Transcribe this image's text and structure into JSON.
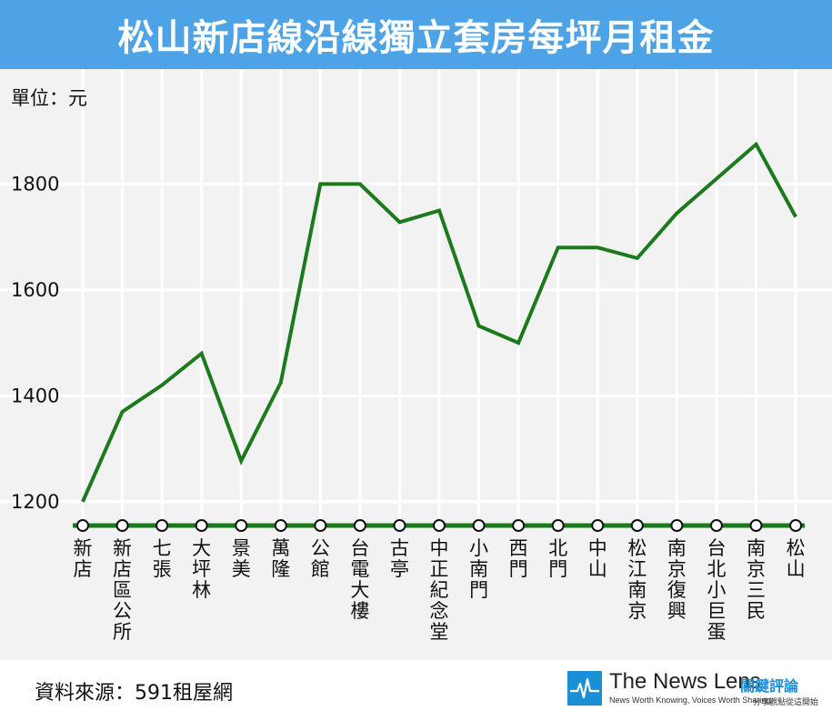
{
  "title": "松山新店線沿線獨立套房每坪月租金",
  "unit_label": "單位：元",
  "source": "資料來源：591租屋網",
  "brand": {
    "name": "The News Lens",
    "name_zh": "關鍵評論",
    "slogan": "News Worth Knowing, Voices Worth Sharing",
    "slogan_zh": "分享觀點從這開始",
    "logo_icon": "heartbeat-icon"
  },
  "colors": {
    "title_bg": "#4ea3e6",
    "line": "#1c7a1c",
    "plot_bg": "#f2f2f2",
    "grid": "#ffffff",
    "marker_fill": "#ffffff",
    "marker_stroke": "#111111"
  },
  "chart_data": {
    "type": "line",
    "title": "松山新店線沿線獨立套房每坪月租金",
    "ylabel": "單位：元",
    "xlabel": "",
    "ylim": [
      1155,
      1890
    ],
    "yticks": [
      1200,
      1400,
      1600,
      1800
    ],
    "grid": true,
    "categories": [
      "新店",
      "新店區公所",
      "七張",
      "大坪林",
      "景美",
      "萬隆",
      "公館",
      "台電大樓",
      "古亭",
      "中正紀念堂",
      "小南門",
      "西門",
      "北門",
      "中山",
      "松江南京",
      "南京復興",
      "台北小巨蛋",
      "南京三民",
      "松山"
    ],
    "series": [
      {
        "values": [
          1200,
          1370,
          1420,
          1480,
          1277,
          1425,
          1800,
          1800,
          1728,
          1750,
          1532,
          1500,
          1680,
          1680,
          1660,
          1745,
          1810,
          1875,
          1738
        ]
      }
    ]
  }
}
